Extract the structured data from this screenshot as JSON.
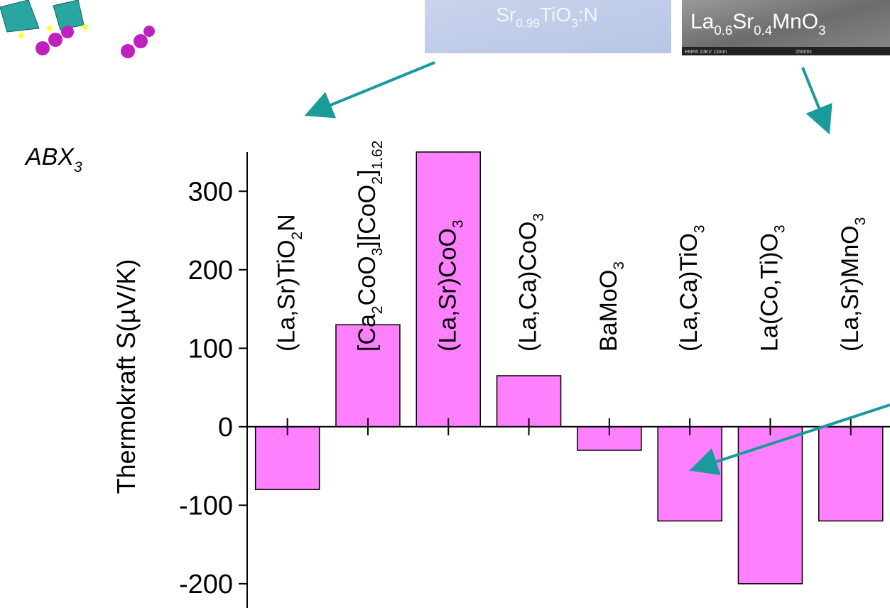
{
  "chart_data": {
    "type": "bar",
    "categories": [
      "(La,Sr)TiO2N",
      "[Ca2CoO3][CoO2]1.62",
      "(La,Sr)CoO3",
      "(La,Ca)CoO3",
      "BaMoO3",
      "(La,Ca)TiO3",
      "La(Co,Ti)O3",
      "(La,Sr)MnO3"
    ],
    "values": [
      -80,
      130,
      350,
      65,
      -30,
      -120,
      -200,
      -120
    ],
    "color": "#ff80ff",
    "y_label": "Thermokraft S(µV/K)",
    "ylim": [
      -230,
      350
    ],
    "yticks": [
      -200,
      -100,
      0,
      100,
      200,
      300
    ]
  },
  "annotations": {
    "structure": "ABX3",
    "image1_caption": "Sr0.99TiO3:N",
    "image2_caption": "La0.6Sr0.4MnO3",
    "image2_info": "EMPA   10KV   13mm",
    "image2_mag": "25000x"
  }
}
